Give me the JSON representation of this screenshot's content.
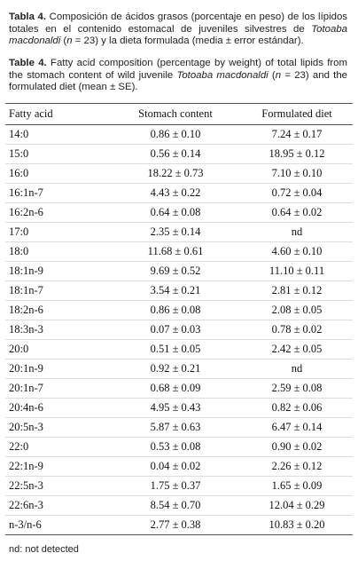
{
  "caption_es": [
    "Tabla 4.",
    " Composición de ácidos grasos (porcentaje en peso) de los lípidos totales en el contenido estomacal de juveniles silvestres de ",
    "Totoaba macdonaldi",
    " (",
    "n",
    " = 23) y la dieta formulada (media ± error estándar)."
  ],
  "caption_en": [
    "Table 4.",
    " Fatty acid composition (percentage by weight) of total lipids from the stomach content of wild juvenile ",
    "Totoaba macdonaldi",
    " (",
    "n",
    " = 23) and the formulated diet (mean ± SE)."
  ],
  "table": {
    "header": [
      "Fatty acid",
      "Stomach content",
      "Formulated diet"
    ],
    "rows": [
      [
        "14:0",
        "0.86 ± 0.10",
        "7.24 ± 0.17"
      ],
      [
        "15:0",
        "0.56 ± 0.14",
        "18.95 ± 0.12"
      ],
      [
        "16:0",
        "18.22 ± 0.73",
        "7.10 ± 0.10"
      ],
      [
        "16:1n-7",
        "4.43 ± 0.22",
        "0.72 ± 0.04"
      ],
      [
        "16:2n-6",
        "0.64 ± 0.08",
        "0.64 ± 0.02"
      ],
      [
        "17:0",
        "2.35 ± 0.14",
        "nd"
      ],
      [
        "18:0",
        "11.68 ± 0.61",
        "4.60 ± 0.10"
      ],
      [
        "18:1n-9",
        "9.69 ± 0.52",
        "11.10 ± 0.11"
      ],
      [
        "18:1n-7",
        "3.54 ± 0.21",
        "2.81 ± 0.12"
      ],
      [
        "18:2n-6",
        "0.86 ± 0.08",
        "2.08 ± 0.05"
      ],
      [
        "18:3n-3",
        "0.07 ± 0.03",
        "0.78 ± 0.02"
      ],
      [
        "20:0",
        "0.51 ± 0.05",
        "2.42 ± 0.05"
      ],
      [
        "20:1n-9",
        "0.92 ± 0.21",
        "nd"
      ],
      [
        "20:1n-7",
        "0.68 ± 0.09",
        "2.59 ± 0.08"
      ],
      [
        "20:4n-6",
        "4.95 ± 0.43",
        "0.82 ± 0.06"
      ],
      [
        "20:5n-3",
        "5.87 ± 0.63",
        "6.47 ± 0.14"
      ],
      [
        "22:0",
        "0.53 ± 0.08",
        "0.90 ± 0.02"
      ],
      [
        "22:1n-9",
        "0.04 ± 0.02",
        "2.26 ± 0.12"
      ],
      [
        "22:5n-3",
        "1.75 ± 0.37",
        "1.65 ± 0.09"
      ],
      [
        "22:6n-3",
        "8.54 ± 0.70",
        "12.04 ± 0.29"
      ],
      [
        "n-3/n-6",
        "2.77 ± 0.38",
        "10.83 ± 0.20"
      ]
    ]
  },
  "footnote": "nd: not detected"
}
